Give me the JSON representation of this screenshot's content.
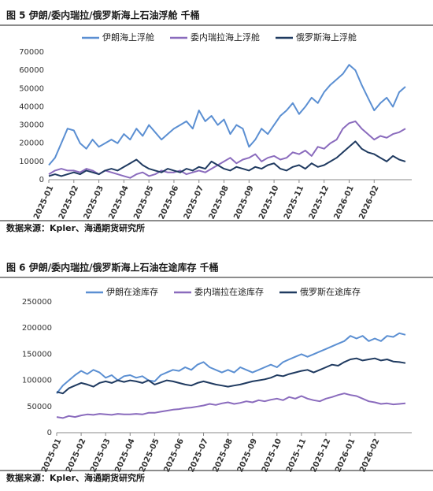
{
  "chart_data": [
    {
      "type": "line",
      "title": "图 5 伊朗/委内瑞拉/俄罗斯海上石油浮舱 千桶",
      "source": "数据来源：Kpler、海通期货研究所",
      "categories": [
        "2025-01",
        null,
        null,
        null,
        "2025-02",
        null,
        null,
        null,
        "2025-03",
        null,
        null,
        null,
        "2025-04",
        null,
        null,
        null,
        "2025-05",
        null,
        null,
        null,
        "2025-06",
        null,
        null,
        null,
        "2025-07",
        null,
        null,
        null,
        "2025-08",
        null,
        null,
        null,
        "2025-09",
        null,
        null,
        null,
        "2025-10",
        null,
        null,
        null,
        "2025-11",
        null,
        null,
        null,
        "2025-12",
        null,
        null,
        null,
        "2026-01",
        null,
        null,
        null,
        "2026-02",
        null,
        null,
        null,
        null,
        null
      ],
      "ylim": [
        0,
        70000
      ],
      "yticks": [
        0,
        10000,
        20000,
        30000,
        40000,
        50000,
        60000,
        70000
      ],
      "grid": false,
      "legend": "top",
      "series": [
        {
          "name": "伊朗海上浮舱",
          "color": "#5b8fd2",
          "values": [
            8000,
            12000,
            20000,
            28000,
            27000,
            20000,
            17000,
            22000,
            18000,
            20000,
            22000,
            20000,
            25000,
            22000,
            28000,
            24000,
            30000,
            26000,
            22000,
            25000,
            28000,
            30000,
            32000,
            28000,
            38000,
            32000,
            35000,
            30000,
            33000,
            25000,
            30000,
            28000,
            18000,
            22000,
            28000,
            25000,
            30000,
            35000,
            38000,
            42000,
            36000,
            40000,
            45000,
            42000,
            48000,
            52000,
            55000,
            58000,
            63000,
            60000,
            52000,
            45000,
            38000,
            42000,
            45000,
            40000,
            48000,
            51000
          ]
        },
        {
          "name": "委内瑞拉海上浮舱",
          "color": "#8a6bbd",
          "values": [
            3000,
            5000,
            6000,
            5000,
            5000,
            4000,
            6000,
            5000,
            3000,
            5000,
            4000,
            3000,
            2000,
            1000,
            3000,
            4000,
            2000,
            3000,
            5000,
            4000,
            4000,
            5000,
            3000,
            4000,
            5000,
            4000,
            6000,
            8000,
            10000,
            12000,
            9000,
            11000,
            12000,
            14000,
            10000,
            12000,
            13000,
            11000,
            12000,
            15000,
            14000,
            16000,
            13000,
            18000,
            17000,
            20000,
            22000,
            28000,
            31000,
            32000,
            28000,
            25000,
            22000,
            24000,
            23000,
            25000,
            26000,
            28000
          ]
        },
        {
          "name": "俄罗斯海上浮舱",
          "color": "#1f3a60",
          "values": [
            2000,
            3000,
            2000,
            3000,
            4000,
            3000,
            5000,
            4000,
            3000,
            5000,
            6000,
            5000,
            7000,
            9000,
            11000,
            8000,
            6000,
            5000,
            4000,
            6000,
            5000,
            4000,
            6000,
            5000,
            7000,
            6000,
            10000,
            8000,
            6000,
            5000,
            7000,
            6000,
            5000,
            7000,
            6000,
            8000,
            9000,
            6000,
            5000,
            7000,
            8000,
            6000,
            9000,
            7000,
            8000,
            10000,
            12000,
            15000,
            18000,
            21000,
            17000,
            15000,
            14000,
            12000,
            10000,
            13000,
            11000,
            10000
          ]
        }
      ]
    },
    {
      "type": "line",
      "title": "图 6 伊朗/委内瑞拉/俄罗斯海上石油在途库存 千桶",
      "source": "数据来源：Kpler、海通期货研究所",
      "categories": [
        "2025-01",
        null,
        null,
        null,
        "2025-02",
        null,
        null,
        null,
        "2025-03",
        null,
        null,
        null,
        "2025-04",
        null,
        null,
        null,
        "2025-05",
        null,
        null,
        null,
        "2025-06",
        null,
        null,
        null,
        "2025-07",
        null,
        null,
        null,
        "2025-08",
        null,
        null,
        null,
        "2025-09",
        null,
        null,
        null,
        "2025-10",
        null,
        null,
        null,
        "2025-11",
        null,
        null,
        null,
        "2025-12",
        null,
        null,
        null,
        "2026-01",
        null,
        null,
        null,
        "2026-02",
        null,
        null,
        null,
        null,
        null
      ],
      "ylim": [
        0,
        250000
      ],
      "yticks": [
        0,
        50000,
        100000,
        150000,
        200000,
        250000
      ],
      "grid": false,
      "legend": "top",
      "series": [
        {
          "name": "伊朗在途库存",
          "color": "#5b8fd2",
          "values": [
            75000,
            90000,
            100000,
            110000,
            118000,
            112000,
            120000,
            115000,
            105000,
            110000,
            100000,
            108000,
            110000,
            105000,
            108000,
            100000,
            98000,
            110000,
            115000,
            120000,
            118000,
            125000,
            120000,
            130000,
            135000,
            125000,
            120000,
            115000,
            120000,
            115000,
            125000,
            120000,
            115000,
            120000,
            125000,
            130000,
            125000,
            135000,
            140000,
            145000,
            150000,
            145000,
            150000,
            155000,
            160000,
            165000,
            170000,
            175000,
            185000,
            180000,
            185000,
            175000,
            180000,
            175000,
            185000,
            183000,
            190000,
            187000
          ]
        },
        {
          "name": "委内瑞拉在途库存",
          "color": "#8a6bbd",
          "values": [
            30000,
            28000,
            32000,
            30000,
            33000,
            35000,
            34000,
            36000,
            35000,
            34000,
            36000,
            35000,
            35000,
            36000,
            35000,
            38000,
            38000,
            40000,
            42000,
            44000,
            45000,
            47000,
            48000,
            50000,
            52000,
            55000,
            53000,
            56000,
            58000,
            55000,
            57000,
            60000,
            58000,
            62000,
            60000,
            63000,
            65000,
            62000,
            68000,
            65000,
            70000,
            65000,
            62000,
            60000,
            65000,
            68000,
            72000,
            75000,
            72000,
            70000,
            65000,
            60000,
            58000,
            55000,
            56000,
            54000,
            55000,
            56000
          ]
        },
        {
          "name": "俄罗斯在途库存",
          "color": "#1f3a60",
          "values": [
            78000,
            75000,
            85000,
            90000,
            95000,
            92000,
            88000,
            95000,
            98000,
            95000,
            100000,
            97000,
            100000,
            98000,
            95000,
            100000,
            92000,
            96000,
            100000,
            98000,
            95000,
            92000,
            90000,
            95000,
            98000,
            95000,
            92000,
            90000,
            88000,
            90000,
            92000,
            95000,
            98000,
            100000,
            102000,
            105000,
            110000,
            108000,
            112000,
            115000,
            118000,
            120000,
            115000,
            120000,
            125000,
            130000,
            128000,
            135000,
            140000,
            142000,
            138000,
            140000,
            142000,
            138000,
            140000,
            136000,
            135000,
            133000
          ]
        }
      ]
    }
  ]
}
